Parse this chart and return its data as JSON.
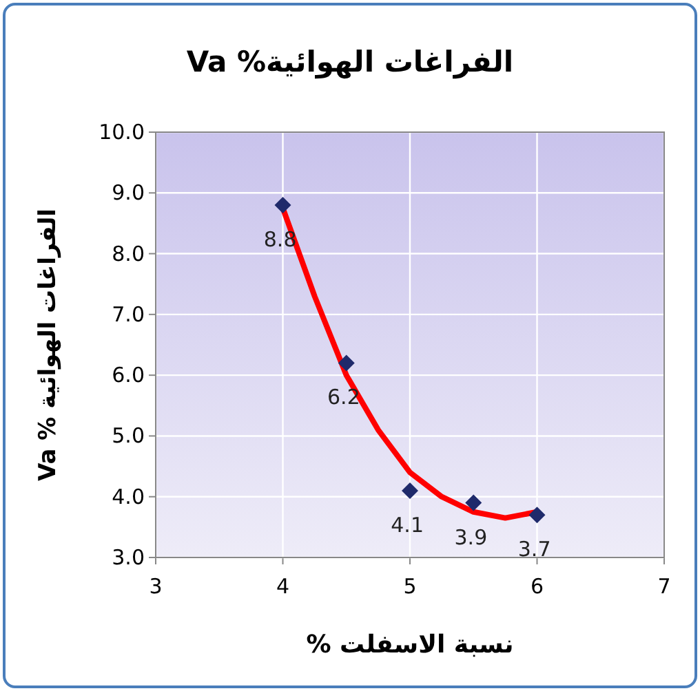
{
  "chart_data": {
    "type": "scatter",
    "title": "الفراغات الهوائية% Va",
    "xlabel": "نسبة الاسفلت %",
    "ylabel": "الفراغات الهوائية % Va",
    "x": [
      4,
      4.5,
      5,
      5.5,
      6
    ],
    "series": [
      {
        "color": "#1f2a6b",
        "values": [
          8.8,
          6.2,
          4.1,
          3.9,
          3.7
        ],
        "marker": "diamond",
        "data_labels": true
      },
      {
        "type": "line",
        "color": "#ff0000",
        "x": [
          4,
          4.25,
          4.5,
          4.75,
          5,
          5.25,
          5.5,
          5.75,
          6
        ],
        "values": [
          8.75,
          7.3,
          6.0,
          5.1,
          4.4,
          4.0,
          3.75,
          3.65,
          3.75
        ]
      }
    ],
    "xlim": [
      3,
      7
    ],
    "xticks": [
      3,
      4,
      5,
      6,
      7
    ],
    "ylim": [
      3,
      10
    ],
    "yticks": [
      {
        "value": 3,
        "label": "3.0"
      },
      {
        "value": 4,
        "label": "4.0"
      },
      {
        "value": 5,
        "label": "5.0"
      },
      {
        "value": 6,
        "label": "6.0"
      },
      {
        "value": 7,
        "label": "7.0"
      },
      {
        "value": 8,
        "label": "8.0"
      },
      {
        "value": 9,
        "label": "9.0"
      },
      {
        "value": 10,
        "label": "10.0"
      }
    ],
    "grid": true
  }
}
